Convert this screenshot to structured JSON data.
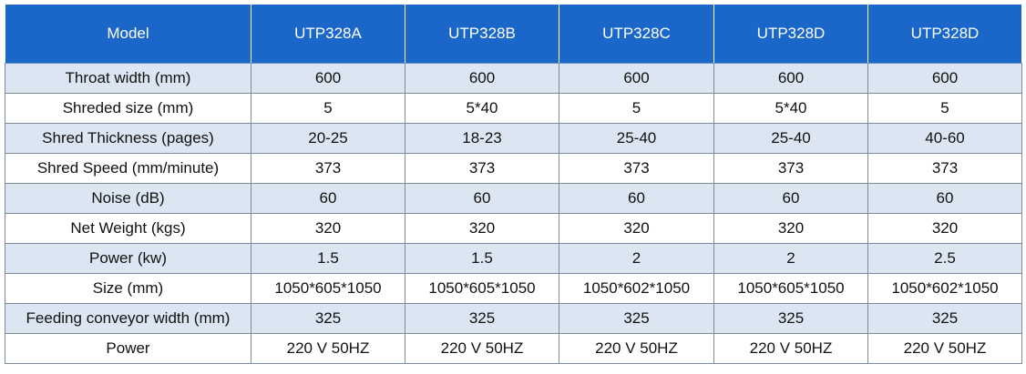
{
  "table": {
    "headers": [
      "Model",
      "UTP328A",
      "UTP328B",
      "UTP328C",
      "UTP328D",
      "UTP328D"
    ],
    "rows": [
      [
        "Throat width (mm)",
        "600",
        "600",
        "600",
        "600",
        "600"
      ],
      [
        "Shreded size (mm)",
        "5",
        "5*40",
        "5",
        "5*40",
        "5"
      ],
      [
        "Shred Thickness (pages)",
        "20-25",
        "18-23",
        "25-40",
        "25-40",
        "40-60"
      ],
      [
        "Shred Speed (mm/minute)",
        "373",
        "373",
        "373",
        "373",
        "373"
      ],
      [
        "Noise (dB)",
        "60",
        "60",
        "60",
        "60",
        "60"
      ],
      [
        "Net Weight (kgs)",
        "320",
        "320",
        "320",
        "320",
        "320"
      ],
      [
        "Power (kw)",
        "1.5",
        "1.5",
        "2",
        "2",
        "2.5"
      ],
      [
        "Size (mm)",
        "1050*605*1050",
        "1050*605*1050",
        "1050*602*1050",
        "1050*605*1050",
        "1050*602*1050"
      ],
      [
        "Feeding conveyor width (mm)",
        "325",
        "325",
        "325",
        "325",
        "325"
      ],
      [
        "Power",
        "220 V 50HZ",
        "220 V 50HZ",
        "220 V 50HZ",
        "220 V 50HZ",
        "220 V 50HZ"
      ]
    ]
  },
  "colors": {
    "header_bg": "#1b67c9",
    "header_text": "#ffffff",
    "stripe_bg": "#dce6f2",
    "plain_bg": "#ffffff",
    "grid_line": "#7d8a9a"
  }
}
